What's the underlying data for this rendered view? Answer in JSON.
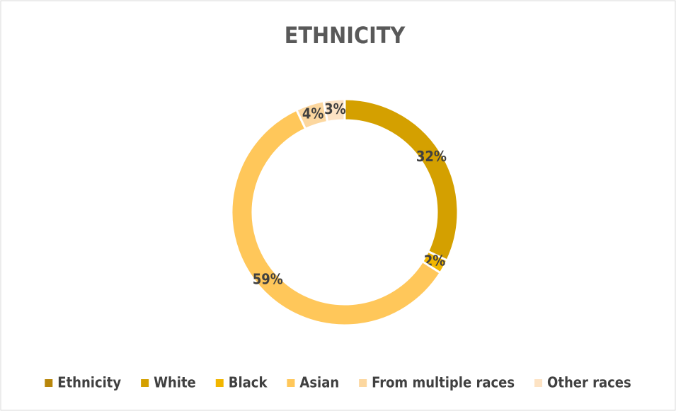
{
  "chart_data": {
    "type": "donut",
    "title": "ETHNICITY",
    "categories": [
      "Ethnicity",
      "White",
      "Black",
      "Asian",
      "From multiple races",
      "Other races"
    ],
    "values": [
      null,
      32,
      2,
      59,
      4,
      3
    ],
    "value_labels": [
      null,
      "32%",
      "2%",
      "59%",
      "4%",
      "3%"
    ],
    "colors": [
      "#b8860b",
      "#d4a000",
      "#f2b600",
      "#ffc75a",
      "#fcd79f",
      "#fde3c4"
    ],
    "legend": "bottom"
  }
}
